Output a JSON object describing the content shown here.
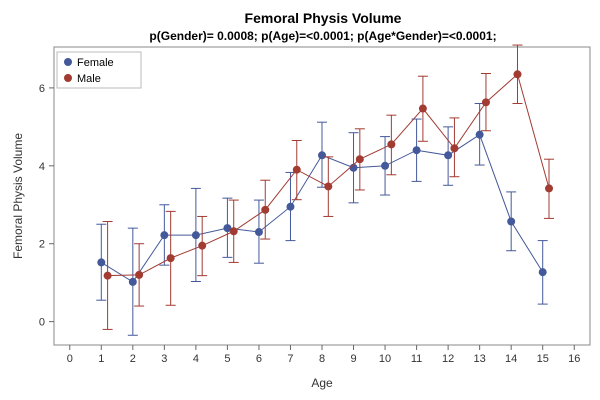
{
  "chart_data": {
    "type": "line",
    "title": "Femoral Physis Volume",
    "subtitle": "p(Gender)= 0.0008; p(Age)=<0.0001; p(Age*Gender)=<0.0001;",
    "xlabel": "Age",
    "ylabel": "Femoral Physis Volume",
    "xlim": [
      -0.5,
      16.5
    ],
    "ylim": [
      -0.6,
      7.05
    ],
    "xticks": [
      "0",
      "1",
      "2",
      "3",
      "4",
      "5",
      "6",
      "7",
      "8",
      "9",
      "10",
      "11",
      "12",
      "13",
      "14",
      "15",
      "16"
    ],
    "yticks": [
      "0",
      "2",
      "4",
      "6"
    ],
    "grid": false,
    "legend_position": "top-left",
    "series": [
      {
        "name": "Female",
        "color": "#44599a",
        "x": [
          1,
          2,
          3,
          4,
          5,
          6,
          7,
          8,
          9,
          10,
          11,
          12,
          13,
          14,
          15
        ],
        "y": [
          1.52,
          1.02,
          2.22,
          2.22,
          2.4,
          2.3,
          2.95,
          4.27,
          3.95,
          4.0,
          4.4,
          4.27,
          4.8,
          2.57,
          1.27
        ],
        "err_low": [
          0.55,
          -0.35,
          1.45,
          1.03,
          1.65,
          1.5,
          2.08,
          3.45,
          3.05,
          3.25,
          3.6,
          3.5,
          4.02,
          1.82,
          0.45
        ],
        "err_high": [
          2.5,
          2.4,
          3.0,
          3.42,
          3.17,
          3.12,
          3.83,
          5.12,
          4.85,
          4.75,
          5.2,
          5.0,
          5.6,
          3.33,
          2.08
        ]
      },
      {
        "name": "Male",
        "color": "#a23b32",
        "x": [
          1.2,
          2.2,
          3.2,
          4.2,
          5.2,
          6.2,
          7.2,
          8.2,
          9.2,
          10.2,
          11.2,
          12.2,
          13.2,
          14.2,
          15.2
        ],
        "y": [
          1.18,
          1.2,
          1.63,
          1.95,
          2.32,
          2.87,
          3.9,
          3.47,
          4.17,
          4.55,
          5.47,
          4.45,
          5.63,
          6.35,
          3.42
        ],
        "err_low": [
          -0.2,
          0.4,
          0.42,
          1.18,
          1.52,
          2.12,
          3.13,
          2.7,
          3.38,
          3.77,
          4.63,
          3.72,
          4.9,
          5.6,
          2.65
        ],
        "err_high": [
          2.57,
          2.0,
          2.83,
          2.7,
          3.12,
          3.63,
          4.65,
          4.23,
          4.95,
          5.3,
          6.3,
          5.23,
          6.37,
          7.1,
          4.17
        ]
      }
    ]
  }
}
